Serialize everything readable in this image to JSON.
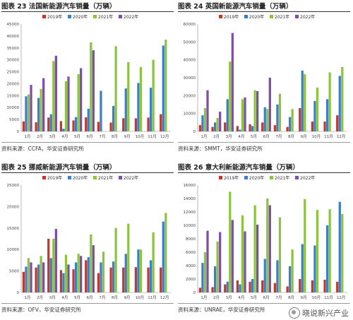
{
  "watermark": {
    "text": "晓说新兴产业",
    "icon": "wechat-icon"
  },
  "series_colors": [
    "#c0392b",
    "#3b7ec9",
    "#8cc43f",
    "#7d4fa3"
  ],
  "chart_data": [
    {
      "type": "bar",
      "title": "图表 23 法国新能源汽车销量（万辆）",
      "source": "资料来源：CCFA，华安证券研究所",
      "categories": [
        "1月",
        "2月",
        "3月",
        "4月",
        "5月",
        "6月",
        "7月",
        "8月",
        "9月",
        "10月",
        "11月",
        "12月"
      ],
      "ylim": [
        0,
        45000
      ],
      "yticks": [
        0,
        5000,
        10000,
        15000,
        20000,
        25000,
        30000,
        35000,
        40000,
        45000
      ],
      "legend_position": "top",
      "series": [
        {
          "name": "2019年",
          "values": [
            4200,
            3800,
            5800,
            4300,
            4600,
            5900,
            4000,
            3700,
            5500,
            5500,
            5800,
            7200
          ]
        },
        {
          "name": "2020年",
          "values": [
            14700,
            14000,
            7200,
            1100,
            6000,
            9500,
            17000,
            10700,
            18000,
            20300,
            18300,
            36000
          ]
        },
        {
          "name": "2021年",
          "values": [
            15500,
            17800,
            29500,
            21000,
            24000,
            37300,
            0,
            35700,
            29000,
            27000,
            30000,
            38500
          ]
        },
        {
          "name": "2022年",
          "values": [
            19500,
            22300,
            31700,
            23000,
            26500,
            34000,
            0,
            0,
            0,
            0,
            0,
            0
          ]
        }
      ]
    },
    {
      "type": "bar",
      "title": "图表 24 英国新能源汽车销量（万辆）",
      "source": "资料来源：SMMT，华安证券研究所",
      "categories": [
        "1月",
        "2月",
        "3月",
        "4月",
        "5月",
        "6月",
        "7月",
        "8月",
        "9月",
        "10月",
        "11月",
        "12月"
      ],
      "ylim": [
        0,
        60000
      ],
      "yticks": [
        0,
        10000,
        20000,
        30000,
        40000,
        50000,
        60000
      ],
      "legend_position": "top",
      "series": [
        {
          "name": "2019年",
          "values": [
            3500,
            2500,
            5000,
            3000,
            4000,
            5000,
            3500,
            2500,
            13000,
            5500,
            5500,
            9000
          ]
        },
        {
          "name": "2020年",
          "values": [
            9000,
            5000,
            18000,
            1000,
            3000,
            13500,
            15000,
            8000,
            34000,
            17000,
            18000,
            31000
          ]
        },
        {
          "name": "2021年",
          "values": [
            13000,
            7500,
            39000,
            18000,
            23000,
            12500,
            21000,
            12500,
            32000,
            24500,
            33000,
            36000
          ]
        },
        {
          "name": "2022年",
          "values": [
            23000,
            11000,
            55000,
            19000,
            22500,
            30000,
            0,
            0,
            0,
            0,
            0,
            0
          ]
        }
      ]
    },
    {
      "type": "bar",
      "title": "图表 25 挪威新能源汽车销量（万辆）",
      "source": "资料来源：OFV，华安证券研究所",
      "categories": [
        "1月",
        "2月",
        "3月",
        "4月",
        "5月",
        "6月",
        "7月",
        "8月",
        "9月",
        "10月",
        "11月",
        "12月"
      ],
      "ylim": [
        0,
        25000
      ],
      "yticks": [
        0,
        5000,
        10000,
        15000,
        20000,
        25000
      ],
      "legend_position": "top",
      "series": [
        {
          "name": "2019年",
          "values": [
            4800,
            5800,
            12500,
            5200,
            5400,
            7500,
            4500,
            5800,
            5800,
            5900,
            5800,
            5800
          ]
        },
        {
          "name": "2020年",
          "values": [
            6000,
            6500,
            8000,
            4500,
            7000,
            8200,
            7000,
            7200,
            9000,
            10000,
            7500,
            16500
          ]
        },
        {
          "name": "2021年",
          "values": [
            8000,
            8500,
            12500,
            8800,
            9000,
            13500,
            9500,
            15000,
            16000,
            10000,
            14000,
            18500
          ]
        },
        {
          "name": "2022年",
          "values": [
            7000,
            7000,
            14800,
            6500,
            8500,
            11000,
            0,
            0,
            0,
            0,
            0,
            0
          ]
        }
      ]
    },
    {
      "type": "bar",
      "title": "图表 26 意大利新能源汽车销量（万辆）",
      "source": "资料来源：UNRAE，华安证券研究所",
      "categories": [
        "1月",
        "2月",
        "3月",
        "4月",
        "5月",
        "6月",
        "7月",
        "8月",
        "9月",
        "10月",
        "11月",
        "12月"
      ],
      "ylim": [
        0,
        16000
      ],
      "yticks": [
        0,
        2000,
        4000,
        6000,
        8000,
        10000,
        12000,
        14000,
        16000
      ],
      "legend_position": "top",
      "series": [
        {
          "name": "2019年",
          "values": [
            700,
            800,
            1200,
            1800,
            1600,
            1800,
            1400,
            900,
            2000,
            1800,
            1900,
            1600
          ]
        },
        {
          "name": "2020年",
          "values": [
            4400,
            3900,
            1600,
            1200,
            2000,
            5000,
            4800,
            3900,
            7200,
            7000,
            10000,
            13500
          ]
        },
        {
          "name": "2021年",
          "values": [
            6000,
            7600,
            15000,
            11500,
            13000,
            14000,
            11200,
            6400,
            13900,
            12300,
            12400,
            11700
          ]
        },
        {
          "name": "2022年",
          "values": [
            9200,
            9000,
            10800,
            9100,
            10100,
            13000,
            0,
            0,
            0,
            0,
            0,
            0
          ]
        }
      ]
    }
  ]
}
